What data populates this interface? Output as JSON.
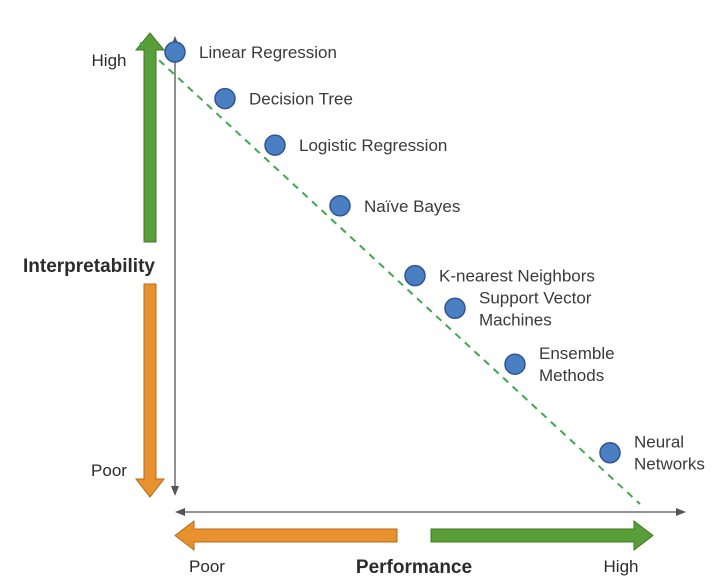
{
  "chart_data": {
    "type": "scatter",
    "title": "",
    "xlabel": "Performance",
    "ylabel": "Interpretability",
    "x_ticks": [
      "Poor",
      "High"
    ],
    "y_ticks": [
      "High",
      "Poor"
    ],
    "xlim": [
      0,
      1
    ],
    "ylim": [
      0,
      1
    ],
    "trend_line": {
      "style": "dashed",
      "color": "#3daa4a",
      "from": [
        0.0,
        0.99
      ],
      "to": [
        1.0,
        0.0
      ]
    },
    "points": [
      {
        "name": "Linear Regression",
        "lines": [
          "Linear Regression"
        ],
        "x": 0.07,
        "y": 0.97
      },
      {
        "name": "Decision Tree",
        "lines": [
          "Decision Tree"
        ],
        "x": 0.17,
        "y": 0.87
      },
      {
        "name": "Logistic Regression",
        "lines": [
          "Logistic Regression"
        ],
        "x": 0.27,
        "y": 0.77
      },
      {
        "name": "Naïve Bayes",
        "lines": [
          "Naïve Bayes"
        ],
        "x": 0.4,
        "y": 0.64
      },
      {
        "name": "K-nearest Neighbors",
        "lines": [
          "K-nearest Neighbors"
        ],
        "x": 0.55,
        "y": 0.49
      },
      {
        "name": "Support Vector Machines",
        "lines": [
          "Support Vector",
          "Machines"
        ],
        "x": 0.63,
        "y": 0.42
      },
      {
        "name": "Ensemble Methods",
        "lines": [
          "Ensemble",
          "Methods"
        ],
        "x": 0.75,
        "y": 0.3
      },
      {
        "name": "Neural Networks",
        "lines": [
          "Neural",
          "Networks"
        ],
        "x": 0.94,
        "y": 0.11
      }
    ],
    "colors": {
      "point_fill": "#4a7fc1",
      "point_stroke": "#2f5597",
      "high_arrow": "#5a9e3a",
      "poor_arrow": "#e8912f",
      "axis": "#555555"
    }
  }
}
